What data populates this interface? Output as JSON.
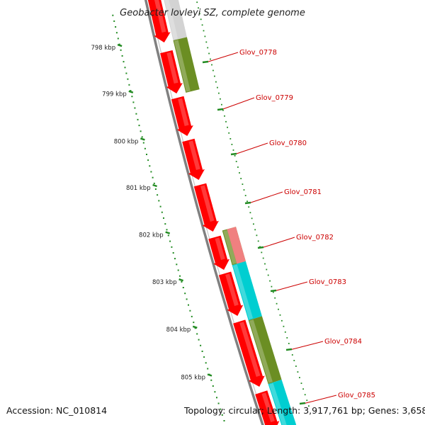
{
  "title": "Geobacter lovleyi SZ, complete genome",
  "accession": "Accession: NC_010814",
  "stats": "Topology: circular; Length: 3,917,761 bp; Genes: 3,658",
  "colors": {
    "cds": "#ff0000",
    "cds_pale": "#f08080",
    "feature_olive": "#6b8e23",
    "feature_cyan": "#00ced1",
    "feature_grey": "#d3d3d3",
    "backbone": "#808080",
    "ruler": "#228b22",
    "label": "#cc0000"
  },
  "ruler_ticks": [
    "798 kbp",
    "799 kbp",
    "800 kbp",
    "801 kbp",
    "802 kbp",
    "803 kbp",
    "804 kbp",
    "805 kbp"
  ],
  "genes": [
    {
      "name": "Glov_0778"
    },
    {
      "name": "Glov_0779"
    },
    {
      "name": "Glov_0780"
    },
    {
      "name": "Glov_0781"
    },
    {
      "name": "Glov_0782"
    },
    {
      "name": "Glov_0783"
    },
    {
      "name": "Glov_0784"
    },
    {
      "name": "Glov_0785"
    }
  ]
}
